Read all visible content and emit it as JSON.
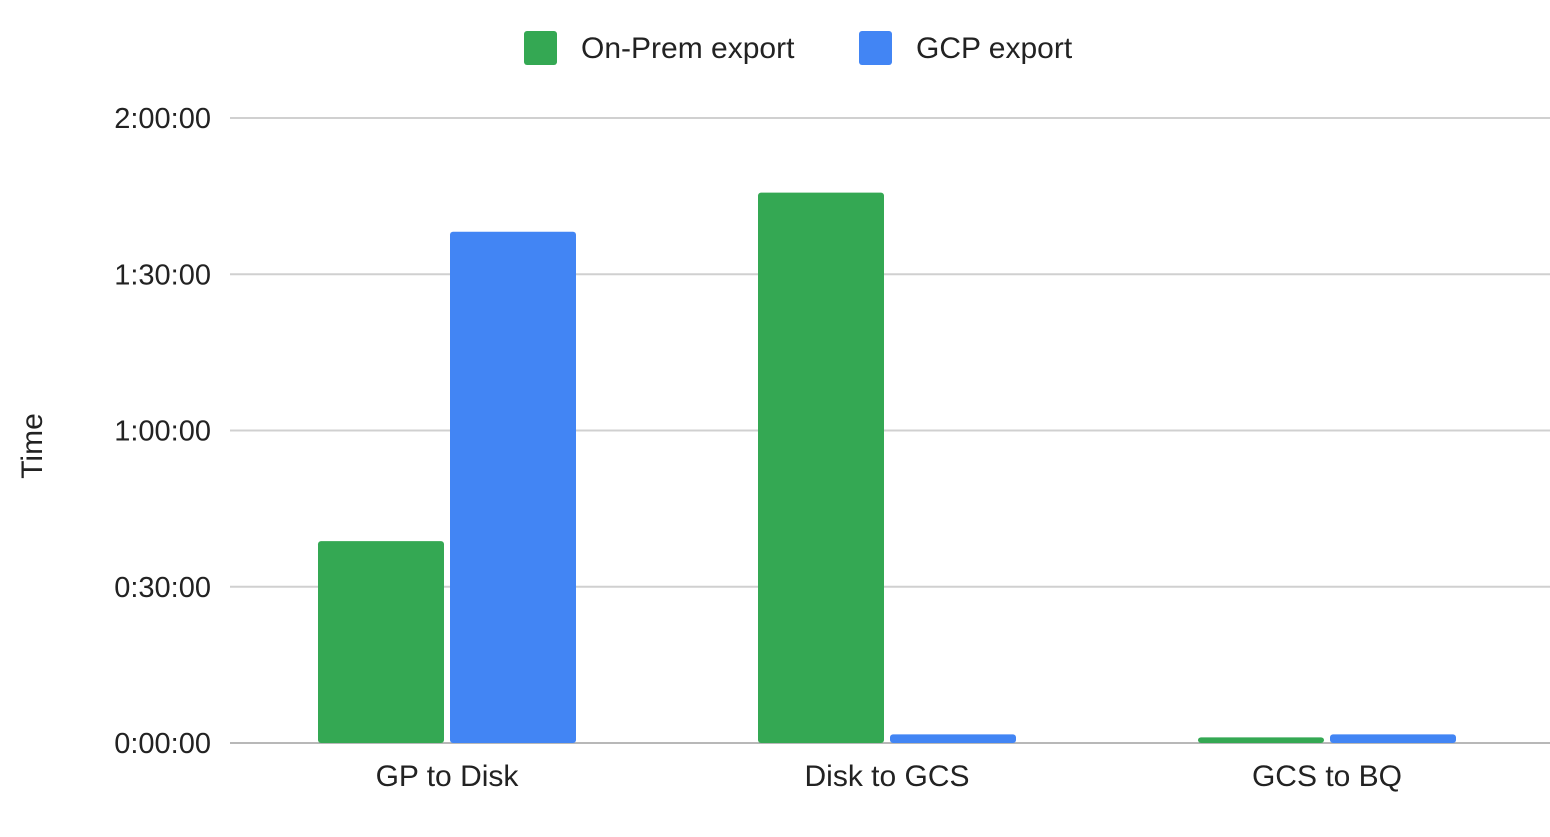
{
  "chart_data": {
    "type": "bar",
    "title": "",
    "xlabel": "",
    "ylabel": "Time",
    "categories": [
      "GP to Disk",
      "Disk to GCS",
      "GCS to BQ"
    ],
    "series": [
      {
        "name": "On-Prem export",
        "color": "#34a853",
        "values": [
          "0:38:45",
          "1:45:40",
          "0:01:05"
        ]
      },
      {
        "name": "GCP export",
        "color": "#4285f4",
        "values": [
          "1:38:10",
          "0:01:40",
          "0:01:40"
        ]
      }
    ],
    "y_ticks": [
      "0:00:00",
      "0:30:00",
      "1:30:00",
      "1:00:00",
      "2:00:00"
    ],
    "ylim": [
      "0:00:00",
      "2:00:00"
    ],
    "grid": true,
    "legend_position": "top-center",
    "gridline_color": "#d0d0d0"
  }
}
